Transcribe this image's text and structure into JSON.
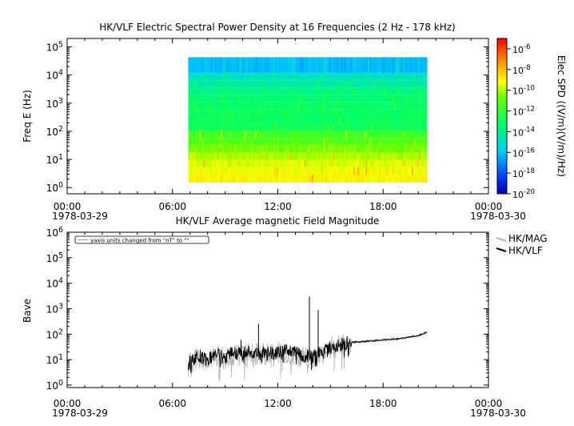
{
  "chart_data": [
    {
      "type": "heatmap",
      "title": "HK/VLF  Electric Spectral Power Density at 16 Frequencies (2 Hz - 178 kHz)",
      "ylabel": "Freq E (Hz)",
      "yscale": "log",
      "ylim": [
        0.6,
        200000
      ],
      "y_ticks": [
        "10^0",
        "10^1",
        "10^2",
        "10^3",
        "10^4",
        "10^5"
      ],
      "x_ticks": [
        "00:00",
        "06:00",
        "12:00",
        "18:00",
        "00:00"
      ],
      "x_dates": [
        "1978-03-29",
        "1978-03-30"
      ],
      "x_range_hours": [
        0,
        24
      ],
      "data_extent_hours": [
        6.9,
        20.5
      ],
      "frequencies_hz": [
        2,
        4,
        7,
        13,
        24,
        43,
        78,
        140,
        250,
        450,
        820,
        1500,
        2700,
        4800,
        8700,
        16000
      ],
      "band_level_exp": [
        -9.1,
        -9.3,
        -9.6,
        -10.0,
        -10.6,
        -11.2,
        -11.7,
        -12.9,
        -13.1,
        -13.1,
        -13.2,
        -13.4,
        -13.7,
        -14.3,
        -14.8,
        -16.2
      ],
      "colorbar": {
        "label": "Elec SPD ((V/m)(V/m)/Hz)",
        "scale": "log",
        "range_exp": [
          -20,
          -5
        ],
        "ticks": [
          "10^-6",
          "10^-8",
          "10^-10",
          "10^-12",
          "10^-14",
          "10^-16",
          "10^-18",
          "10^-20"
        ]
      }
    },
    {
      "type": "line",
      "title": "HK/VLF  Average magnetic Field Magnitude",
      "ylabel": "Bave",
      "yscale": "log",
      "ylim": [
        0.8,
        1000000
      ],
      "y_ticks": [
        "10^0",
        "10^1",
        "10^2",
        "10^3",
        "10^4",
        "10^5",
        "10^6"
      ],
      "x_ticks": [
        "00:00",
        "06:00",
        "12:00",
        "18:00",
        "00:00"
      ],
      "x_dates": [
        "1978-03-29",
        "1978-03-30"
      ],
      "x_range_hours": [
        0,
        24
      ],
      "note": "yaxis units changed from \"nT\" to \"\"",
      "series": [
        {
          "name": "HK/MAG",
          "color": "#b4b4b4",
          "x": [
            6.9,
            7.5,
            8.0,
            8.5,
            9.0,
            9.5,
            10.0,
            10.5,
            11.0,
            11.5,
            12.0,
            12.5,
            13.0,
            13.5,
            14.0,
            14.5,
            15.0,
            15.5,
            16.0,
            17.0,
            18.0,
            19.0,
            20.0,
            20.5
          ],
          "y": [
            6,
            12,
            9,
            15,
            11,
            16,
            14,
            18,
            15,
            18,
            17,
            20,
            14,
            12,
            9,
            20,
            28,
            35,
            45,
            50,
            58,
            65,
            85,
            110
          ]
        },
        {
          "name": "HK/VLF",
          "color": "#000000",
          "x": [
            6.9,
            7.5,
            8.0,
            8.5,
            9.0,
            9.5,
            10.0,
            10.5,
            11.0,
            11.5,
            12.0,
            12.5,
            13.0,
            13.5,
            14.0,
            14.5,
            15.0,
            15.5,
            16.0,
            17.0,
            18.0,
            19.0,
            20.0,
            20.5
          ],
          "y": [
            7,
            14,
            10,
            16,
            12,
            18,
            17,
            20,
            17,
            19,
            18,
            22,
            17,
            15,
            12,
            22,
            30,
            37,
            47,
            52,
            60,
            67,
            88,
            120
          ]
        }
      ],
      "spikes": [
        {
          "series": "HK/VLF",
          "x": 10.9,
          "y": 250
        },
        {
          "series": "HK/VLF",
          "x": 13.8,
          "y": 3000
        },
        {
          "series": "HK/VLF",
          "x": 14.3,
          "y": 900
        },
        {
          "series": "HK/VLF",
          "x": 9.9,
          "y": 60
        }
      ]
    }
  ]
}
